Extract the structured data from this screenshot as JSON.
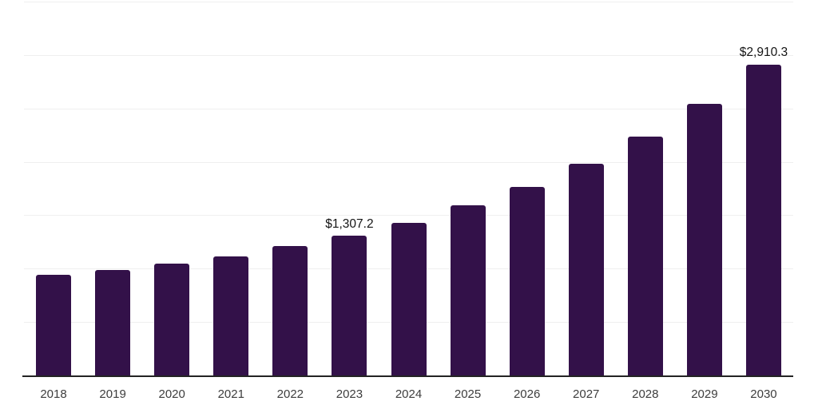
{
  "chart_data": {
    "type": "bar",
    "title": "",
    "categories": [
      "2018",
      "2019",
      "2020",
      "2021",
      "2022",
      "2023",
      "2024",
      "2025",
      "2026",
      "2027",
      "2028",
      "2029",
      "2030"
    ],
    "values": [
      940,
      990,
      1045,
      1112,
      1210,
      1307.2,
      1432,
      1595,
      1765,
      1985,
      2238,
      2542,
      2910.3
    ],
    "bar_labels": [
      "",
      "",
      "",
      "",
      "",
      "$1,307.2",
      "",
      "",
      "",
      "",
      "",
      "",
      "$2,910.3"
    ],
    "xlabel": "",
    "ylabel": "",
    "ylim": [
      0,
      3500
    ],
    "gridline_step": 500,
    "grid": "horizontal",
    "legend": "none",
    "y_axis_tick_labels": "none",
    "colors": {
      "bar": "#331149",
      "grid": "#efefef",
      "axis": "#242424",
      "tick_label": "#3d3d3d",
      "data_label": "#141414",
      "background": "#ffffff"
    }
  }
}
